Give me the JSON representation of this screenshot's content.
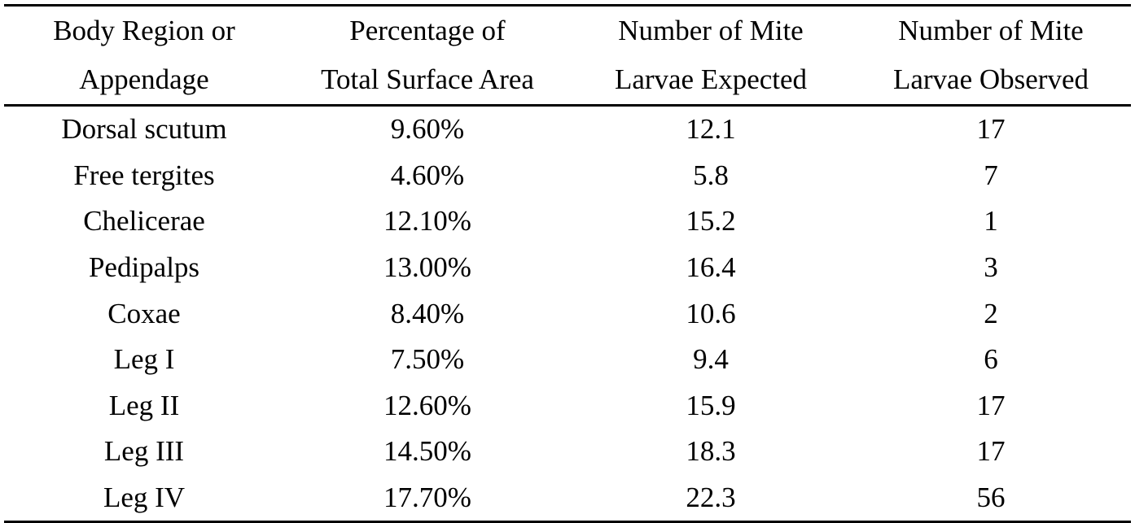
{
  "table": {
    "headers": [
      [
        "Body Region or",
        "Appendage"
      ],
      [
        "Percentage of",
        "Total Surface Area"
      ],
      [
        "Number of Mite",
        "Larvae Expected"
      ],
      [
        "Number of Mite",
        "Larvae Observed"
      ]
    ],
    "rows": [
      [
        "Dorsal scutum",
        "9.60%",
        "12.1",
        "17"
      ],
      [
        "Free tergites",
        "4.60%",
        "5.8",
        "7"
      ],
      [
        "Chelicerae",
        "12.10%",
        "15.2",
        "1"
      ],
      [
        "Pedipalps",
        "13.00%",
        "16.4",
        "3"
      ],
      [
        "Coxae",
        "8.40%",
        "10.6",
        "2"
      ],
      [
        "Leg I",
        "7.50%",
        "9.4",
        "6"
      ],
      [
        "Leg II",
        "12.60%",
        "15.9",
        "17"
      ],
      [
        "Leg III",
        "14.50%",
        "18.3",
        "17"
      ],
      [
        "Leg IV",
        "17.70%",
        "22.3",
        "56"
      ]
    ]
  }
}
